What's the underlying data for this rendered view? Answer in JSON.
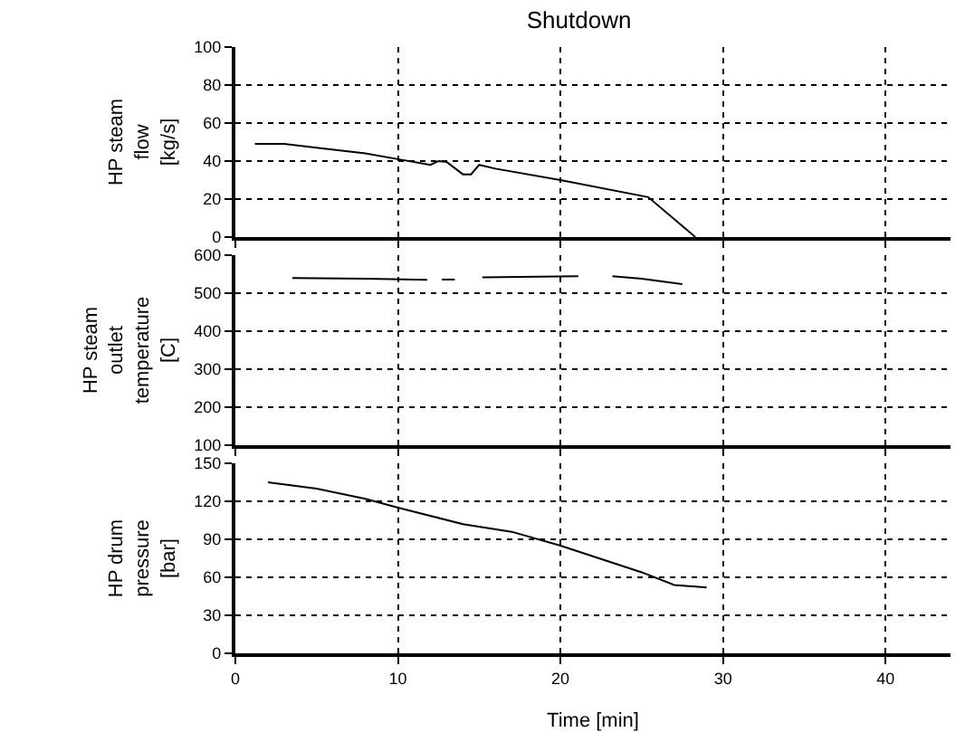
{
  "chart_data": [
    {
      "type": "line",
      "title": "Shutdown",
      "ylabel": "HP steam\nflow\n[kg/s]",
      "xlim": [
        0,
        44
      ],
      "xticks": [
        0,
        10,
        20,
        30,
        40
      ],
      "ylim": [
        0,
        100
      ],
      "yticks": [
        0,
        20,
        40,
        60,
        80,
        100
      ],
      "grid": true,
      "tick_labels": "y",
      "line_style": "solid",
      "series": [
        {
          "color": "#000000",
          "x": [
            1.2,
            3,
            5,
            8,
            10,
            12,
            12.5,
            13,
            14,
            14.5,
            15,
            16,
            20,
            25.4,
            28.3
          ],
          "values": [
            49,
            49,
            47,
            44,
            41,
            38,
            40,
            39.5,
            33,
            33,
            38,
            36,
            30,
            21,
            0
          ]
        }
      ]
    },
    {
      "type": "line",
      "ylabel": "HP steam\noutlet\ntemperature\n[C]",
      "xlim": [
        0,
        44
      ],
      "xticks": [
        0,
        10,
        20,
        30,
        40
      ],
      "ylim": [
        100,
        600
      ],
      "yticks": [
        100,
        200,
        300,
        400,
        500,
        600
      ],
      "grid": true,
      "tick_labels": "y",
      "line_style": "solid",
      "series": [
        {
          "color": "#000000",
          "x": [
            3.5,
            8.1,
            11.8,
            12.2,
            12.7,
            13.5,
            14.3,
            15.2,
            21.1,
            22.2,
            23.2,
            25,
            27.5
          ],
          "values": [
            540,
            538,
            535,
            null,
            536,
            536,
            null,
            542,
            545,
            null,
            545,
            538,
            524
          ]
        }
      ]
    },
    {
      "type": "line",
      "ylabel": "HP drum\npressure\n[bar]",
      "xlabel": "Time [min]",
      "xlim": [
        0,
        44
      ],
      "xticks": [
        0,
        10,
        20,
        30,
        40
      ],
      "ylim": [
        0,
        150
      ],
      "yticks": [
        0,
        30,
        60,
        90,
        120,
        150
      ],
      "grid": true,
      "line_style": "solid",
      "series": [
        {
          "color": "#000000",
          "x": [
            2,
            5,
            8,
            10,
            14,
            17,
            20,
            25,
            27,
            29
          ],
          "values": [
            135,
            130,
            122,
            115,
            102,
            96,
            85,
            64,
            54,
            52
          ]
        }
      ]
    }
  ]
}
